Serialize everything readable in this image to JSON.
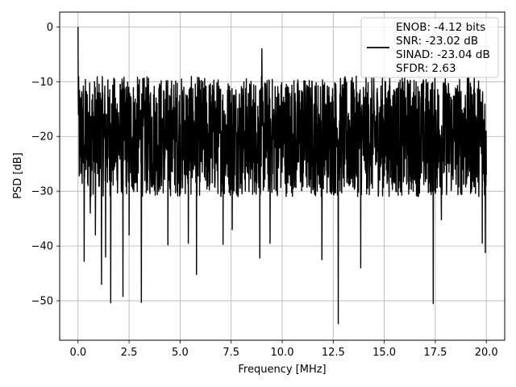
{
  "chart_data": {
    "type": "line",
    "title": "",
    "xlabel": "Frequency [MHz]",
    "ylabel": "PSD [dB]",
    "xlim": [
      -0.9,
      20.9
    ],
    "ylim": [
      -57.2,
      2.7
    ],
    "grid": true,
    "legend_placement": "top-right",
    "x_ticks": [
      0.0,
      2.5,
      5.0,
      7.5,
      10.0,
      12.5,
      15.0,
      17.5,
      20.0
    ],
    "x_tick_labels": [
      "0.0",
      "2.5",
      "5.0",
      "7.5",
      "10.0",
      "12.5",
      "15.0",
      "17.5",
      "20.0"
    ],
    "y_ticks": [
      0,
      -10,
      -20,
      -30,
      -40,
      -50
    ],
    "y_tick_labels": [
      "0",
      "−10",
      "−20",
      "−30",
      "−40",
      "−50"
    ],
    "series": [
      {
        "name": "ENOB: -4.12 bits\nSNR: -23.02 dB\nSINAD: -23.04 dB\nSFDR: 2.63",
        "color": "#000000",
        "x_start": 0.0,
        "x_end": 20.0,
        "num_points": 2000,
        "noise_floor_db": -20,
        "top_envelope_db": -9,
        "peaks": [
          {
            "x": 0.0,
            "y": 0.0
          },
          {
            "x": 0.15,
            "y": -13
          },
          {
            "x": 0.3,
            "y": -42.8
          },
          {
            "x": 0.6,
            "y": -34
          },
          {
            "x": 0.85,
            "y": -38
          },
          {
            "x": 1.15,
            "y": -47
          },
          {
            "x": 1.35,
            "y": -42
          },
          {
            "x": 1.6,
            "y": -50.4
          },
          {
            "x": 2.2,
            "y": -49.2
          },
          {
            "x": 2.5,
            "y": -38
          },
          {
            "x": 3.1,
            "y": -50.3
          },
          {
            "x": 4.4,
            "y": -39.8
          },
          {
            "x": 5.4,
            "y": -39.5
          },
          {
            "x": 5.8,
            "y": -45.2
          },
          {
            "x": 7.1,
            "y": -39.7
          },
          {
            "x": 7.55,
            "y": -37
          },
          {
            "x": 8.9,
            "y": -42.2
          },
          {
            "x": 9.0,
            "y": -4.0
          },
          {
            "x": 9.4,
            "y": -39.5
          },
          {
            "x": 11.95,
            "y": -42.5
          },
          {
            "x": 12.75,
            "y": -54.2
          },
          {
            "x": 13.85,
            "y": -44.0
          },
          {
            "x": 17.4,
            "y": -50.5
          },
          {
            "x": 17.8,
            "y": -35.2
          },
          {
            "x": 19.8,
            "y": -39.5
          },
          {
            "x": 19.95,
            "y": -41.2
          }
        ]
      }
    ]
  },
  "legend": {
    "lines": [
      "ENOB: -4.12 bits",
      "SNR: -23.02 dB",
      "SINAD: -23.04 dB",
      "SFDR: 2.63"
    ]
  }
}
